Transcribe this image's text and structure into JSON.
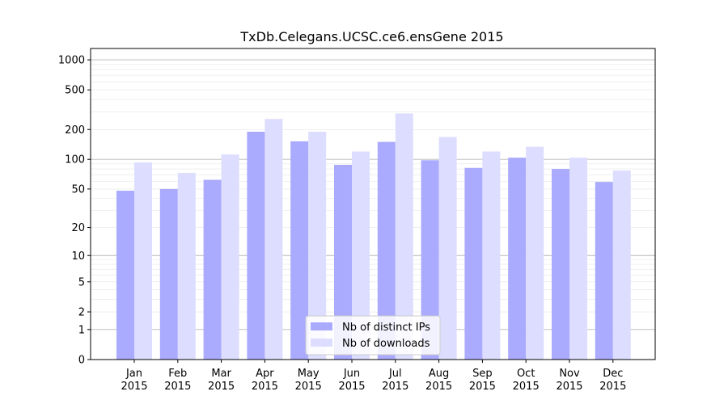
{
  "chart_data": {
    "type": "bar",
    "title": "TxDb.Celegans.UCSC.ce6.ensGene 2015",
    "xlabel": "",
    "ylabel": "",
    "yscale": "log1p",
    "ylim": [
      0,
      1300
    ],
    "yticks": [
      {
        "value": 0,
        "label": "0"
      },
      {
        "value": 1,
        "label": "1"
      },
      {
        "value": 2,
        "label": "2"
      },
      {
        "value": 5,
        "label": "5"
      },
      {
        "value": 10,
        "label": "10"
      },
      {
        "value": 20,
        "label": "20"
      },
      {
        "value": 50,
        "label": "50"
      },
      {
        "value": 100,
        "label": "100"
      },
      {
        "value": 200,
        "label": "200"
      },
      {
        "value": 500,
        "label": "500"
      },
      {
        "value": 1000,
        "label": "1000"
      }
    ],
    "major_gridlines": [
      1,
      10,
      100,
      1000
    ],
    "minor_gridlines": [
      2,
      3,
      4,
      5,
      6,
      7,
      8,
      9,
      20,
      30,
      40,
      50,
      60,
      70,
      80,
      90,
      200,
      300,
      400,
      500,
      600,
      700,
      800,
      900
    ],
    "categories": [
      {
        "month": "Jan",
        "year": "2015"
      },
      {
        "month": "Feb",
        "year": "2015"
      },
      {
        "month": "Mar",
        "year": "2015"
      },
      {
        "month": "Apr",
        "year": "2015"
      },
      {
        "month": "May",
        "year": "2015"
      },
      {
        "month": "Jun",
        "year": "2015"
      },
      {
        "month": "Jul",
        "year": "2015"
      },
      {
        "month": "Aug",
        "year": "2015"
      },
      {
        "month": "Sep",
        "year": "2015"
      },
      {
        "month": "Oct",
        "year": "2015"
      },
      {
        "month": "Nov",
        "year": "2015"
      },
      {
        "month": "Dec",
        "year": "2015"
      }
    ],
    "series": [
      {
        "name": "Nb of distinct IPs",
        "color": "#aaaaff",
        "values": [
          48,
          50,
          62,
          190,
          152,
          88,
          150,
          98,
          82,
          104,
          80,
          59
        ]
      },
      {
        "name": "Nb of downloads",
        "color": "#ddddff",
        "values": [
          93,
          73,
          112,
          255,
          190,
          120,
          290,
          168,
          120,
          134,
          104,
          77
        ]
      }
    ],
    "legend_position": "bottom-center",
    "grid": true
  }
}
